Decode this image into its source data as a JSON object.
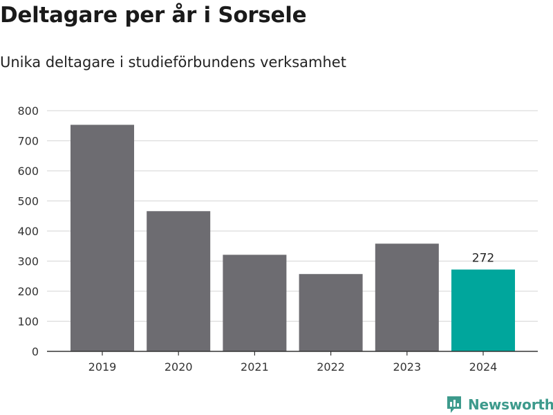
{
  "chart_data": {
    "type": "bar",
    "title": "Deltagare per år i Sorsele",
    "subtitle": "Unika deltagare i studieförbundens verksamhet",
    "categories": [
      "2019",
      "2020",
      "2021",
      "2022",
      "2023",
      "2024"
    ],
    "values": [
      753,
      466,
      321,
      257,
      358,
      272
    ],
    "highlight_index": 5,
    "highlight_label": "272",
    "xlabel": "",
    "ylabel": "",
    "ylim": [
      0,
      800
    ],
    "yticks": [
      0,
      100,
      200,
      300,
      400,
      500,
      600,
      700,
      800
    ],
    "grid": true,
    "legend": "none",
    "colors": {
      "bar": "#6d6c71",
      "highlight": "#00a69c",
      "grid": "#dcdcdc",
      "axis": "#333333"
    }
  },
  "brand": {
    "name": "Newsworthy",
    "icon": "newsworthy-logo-icon",
    "color": "#3d9a8c"
  }
}
